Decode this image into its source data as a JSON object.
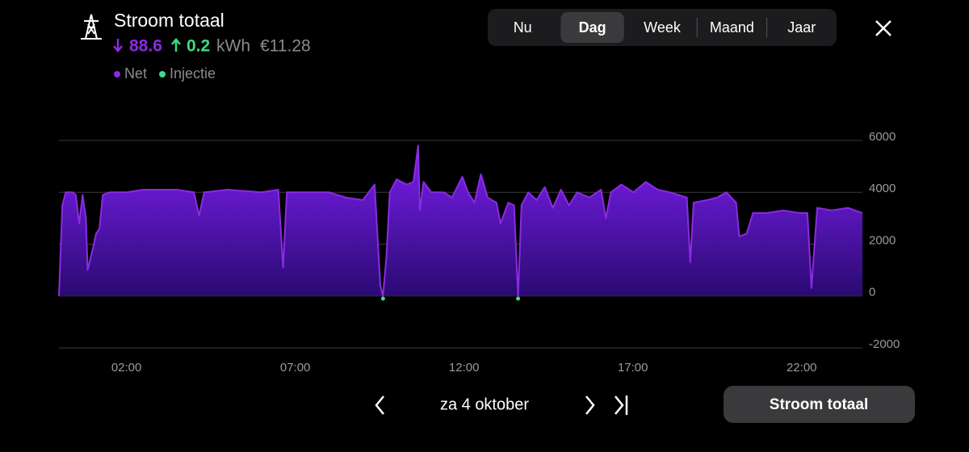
{
  "header": {
    "title": "Stroom totaal",
    "import": "88.6",
    "export": "0.2",
    "unit": "kWh",
    "cost": "€11.28"
  },
  "tabs": [
    "Nu",
    "Dag",
    "Week",
    "Maand",
    "Jaar"
  ],
  "selected_tab": "Dag",
  "nav": {
    "date": "za 4 oktober",
    "button": "Stroom totaal"
  },
  "chart_data": {
    "type": "area",
    "x": [
      0,
      0.1,
      0.2,
      0.4,
      0.5,
      0.6,
      0.7,
      0.8,
      0.85,
      1.0,
      1.1,
      1.2,
      1.3,
      1.5,
      2,
      2.5,
      3,
      3.5,
      4,
      4.15,
      4.3,
      5,
      6,
      6.5,
      6.64,
      6.75,
      7,
      7.5,
      8,
      8.5,
      9,
      9.35,
      9.45,
      9.52,
      9.6,
      9.7,
      9.8,
      10,
      10.3,
      10.5,
      10.64,
      10.69,
      10.8,
      11.03,
      11.4,
      11.64,
      11.95,
      12.12,
      12.31,
      12.5,
      12.7,
      12.96,
      13.08,
      13.31,
      13.48,
      13.6,
      13.7,
      13.9,
      14.15,
      14.39,
      14.63,
      14.87,
      15.11,
      15.35,
      15.71,
      16.06,
      16.2,
      16.35,
      16.66,
      17.02,
      17.38,
      17.74,
      18.1,
      18.6,
      18.7,
      18.8,
      19.2,
      19.5,
      19.77,
      20.06,
      20.15,
      20.37,
      20.56,
      20.97,
      21.45,
      21.93,
      22.17,
      22.29,
      22.46,
      22.89,
      23.37,
      23.8
    ],
    "series": [
      {
        "name": "Net",
        "color": "#8a2be2",
        "values": [
          0,
          3500,
          4000,
          4000,
          3900,
          2800,
          3900,
          3000,
          1000,
          1800,
          2400,
          2600,
          3900,
          4000,
          4000,
          4100,
          4100,
          4100,
          4000,
          3100,
          4000,
          4100,
          4000,
          4100,
          1100,
          4000,
          4000,
          4000,
          4000,
          3800,
          3700,
          4300,
          2000,
          400,
          0,
          1500,
          4000,
          4500,
          4300,
          4400,
          5800,
          3300,
          4400,
          4000,
          4000,
          3800,
          4600,
          4000,
          3600,
          4700,
          3800,
          3600,
          2800,
          3600,
          3500,
          0,
          3500,
          4000,
          3700,
          4200,
          3400,
          4100,
          3500,
          4000,
          3800,
          4100,
          3000,
          4000,
          4300,
          4000,
          4400,
          4100,
          4000,
          3800,
          1300,
          3600,
          3700,
          3800,
          4000,
          3600,
          2300,
          2400,
          3200,
          3200,
          3300,
          3200,
          3200,
          300,
          3400,
          3300,
          3400,
          3200
        ]
      },
      {
        "name": "Injectie",
        "color": "#3ddc84",
        "values": [
          null,
          null,
          null,
          null,
          null,
          null,
          null,
          null,
          null,
          null,
          null,
          null,
          null,
          null,
          null,
          null,
          null,
          null,
          null,
          null,
          null,
          null,
          null,
          null,
          null,
          null,
          null,
          null,
          null,
          null,
          null,
          null,
          null,
          null,
          -100,
          null,
          null,
          null,
          null,
          null,
          null,
          null,
          null,
          null,
          null,
          null,
          null,
          null,
          null,
          null,
          null,
          null,
          null,
          null,
          null,
          -100,
          null,
          null,
          null,
          null,
          null,
          null,
          null,
          null,
          null,
          null,
          null,
          null,
          null,
          null,
          null,
          null,
          null,
          null,
          null,
          null,
          null,
          null,
          null,
          null,
          null,
          null,
          null,
          null,
          null,
          null,
          null,
          null,
          null,
          null,
          null,
          null
        ]
      }
    ],
    "xlim": [
      0,
      23.8
    ],
    "xticks": [
      {
        "value": 2,
        "label": "02:00"
      },
      {
        "value": 7,
        "label": "07:00"
      },
      {
        "value": 12,
        "label": "12:00"
      },
      {
        "value": 17,
        "label": "17:00"
      },
      {
        "value": 22,
        "label": "22:00"
      }
    ],
    "ylim": [
      -2000,
      6000
    ],
    "yticks": [
      -2000,
      0,
      2000,
      4000,
      6000
    ],
    "grid": true
  }
}
